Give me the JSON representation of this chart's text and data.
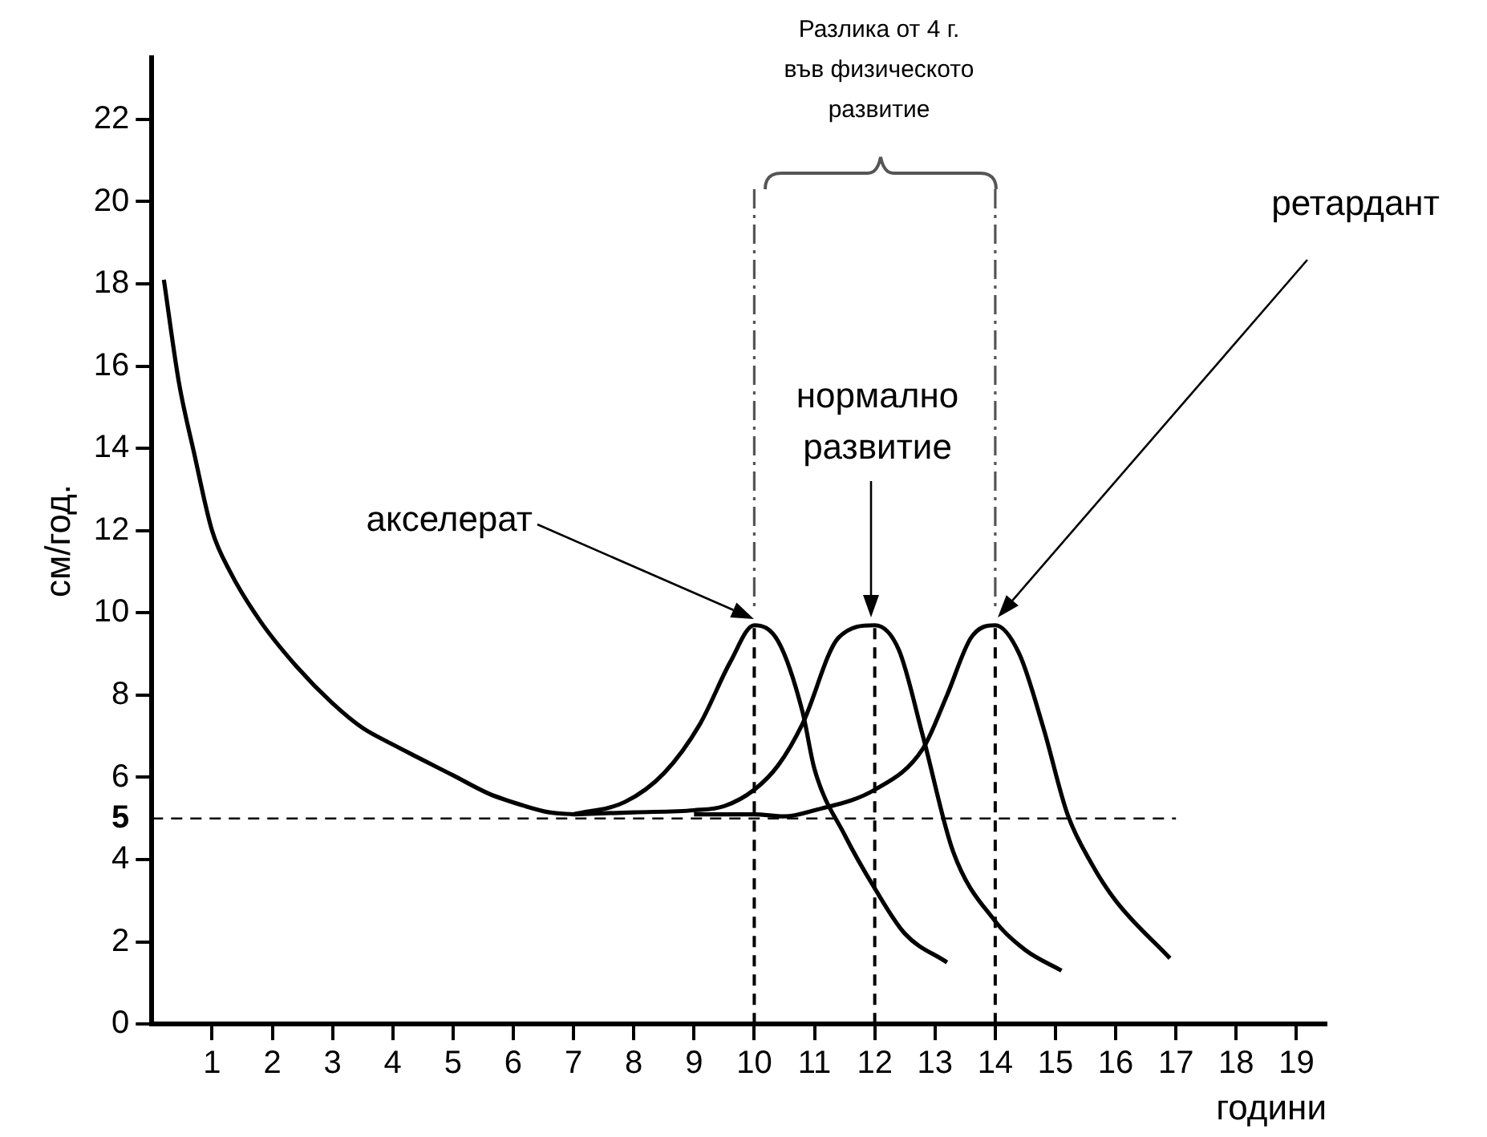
{
  "chart_data": {
    "type": "line",
    "xlabel": "години",
    "ylabel": "см/год.",
    "xlim": [
      0,
      19.5
    ],
    "ylim": [
      0,
      23.5
    ],
    "xticks": [
      1,
      2,
      3,
      4,
      5,
      6,
      7,
      8,
      9,
      10,
      11,
      12,
      13,
      14,
      15,
      16,
      17,
      18,
      19
    ],
    "yticks": [
      0,
      2,
      4,
      5,
      6,
      8,
      10,
      12,
      14,
      16,
      18,
      20,
      22
    ],
    "grid": false,
    "legend": false,
    "marker": "none",
    "line_style": "solid",
    "series": [
      {
        "color": "#000000",
        "x": [
          0.2,
          0.45,
          0.7,
          1,
          1.3,
          1.8,
          2.4,
          3,
          3.5,
          4,
          5,
          5.6,
          6.2,
          6.6,
          7
        ],
        "values": [
          18.1,
          15.6,
          13.9,
          12,
          11,
          9.8,
          8.7,
          7.8,
          7.2,
          6.8,
          6.05,
          5.6,
          5.3,
          5.15,
          5.1
        ]
      },
      {
        "color": "#000000",
        "x": [
          7,
          7.85,
          8.5,
          9.1,
          9.6,
          10,
          10.4,
          10.8,
          11,
          11.5,
          12,
          12.5,
          13.2
        ],
        "values": [
          5.1,
          5.4,
          6.1,
          7.3,
          8.8,
          9.7,
          9.3,
          7.6,
          6.2,
          4.6,
          3.3,
          2.2,
          1.5
        ]
      },
      {
        "color": "#000000",
        "x": [
          7,
          8,
          9,
          9.5,
          10,
          10.4,
          10.8,
          11.4,
          12,
          12.4,
          12.8,
          13.3,
          14,
          14.5,
          15.1
        ],
        "values": [
          5.1,
          5.15,
          5.2,
          5.3,
          5.7,
          6.3,
          7.3,
          9.4,
          9.7,
          9.1,
          7,
          4.2,
          2.5,
          1.8,
          1.3
        ]
      },
      {
        "color": "#000000",
        "x": [
          9,
          10,
          10.5,
          11,
          12,
          12.8,
          13.2,
          13.6,
          14,
          14.4,
          14.8,
          15.2,
          15.6,
          16,
          16.9
        ],
        "values": [
          5.1,
          5.1,
          5.05,
          5.2,
          5.7,
          6.7,
          8,
          9.4,
          9.7,
          9,
          7.2,
          5.1,
          3.9,
          3,
          1.6
        ]
      }
    ],
    "ref_lines": [
      {
        "axis": "y",
        "value": 5,
        "line_style": "dashed",
        "color": "#000000"
      },
      {
        "axis": "x",
        "value": 10,
        "line_style": "dashed",
        "color": "#000000"
      },
      {
        "axis": "x",
        "value": 12,
        "line_style": "dashed",
        "color": "#000000"
      },
      {
        "axis": "x",
        "value": 14,
        "line_style": "dashed",
        "color": "#000000"
      }
    ],
    "annotations": [
      "Разлика от 4 г.\nвъв физическото\nразвитие",
      "акселерат",
      "нормално\nразвитие",
      "ретардант"
    ]
  }
}
